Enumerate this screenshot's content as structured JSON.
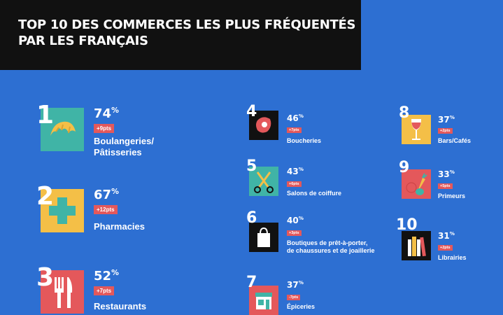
{
  "header": {
    "title_line1": "TOP 10 DES COMMERCES LES PLUS FRÉQUENTÉS",
    "title_line2": "PAR LES FRANÇAIS"
  },
  "colors": {
    "background": "#2d6fd2",
    "header_bg": "#111111",
    "badge": "#e4585b",
    "icon_teal": "#40b4a6",
    "icon_yellow": "#f4bf47",
    "icon_red": "#e4585b",
    "icon_black": "#111111"
  },
  "items": [
    {
      "rank": "1",
      "percent": "74",
      "percent_sign": "%",
      "change": "+9pts",
      "label_line1": "Boulangeries/",
      "label_line2": "Pâtisseries",
      "icon": "croissant-icon"
    },
    {
      "rank": "2",
      "percent": "67",
      "percent_sign": "%",
      "change": "+12pts",
      "label_line1": "Pharmacies",
      "icon": "pharmacy-cross-icon"
    },
    {
      "rank": "3",
      "percent": "52",
      "percent_sign": "%",
      "change": "+7pts",
      "label_line1": "Restaurants",
      "icon": "fork-knife-icon"
    },
    {
      "rank": "4",
      "percent": "46",
      "percent_sign": "%",
      "change": "+7pts",
      "label_line1": "Boucheries",
      "icon": "steak-icon"
    },
    {
      "rank": "5",
      "percent": "43",
      "percent_sign": "%",
      "change": "+6pts",
      "label_line1": "Salons de coiffure",
      "icon": "scissors-icon"
    },
    {
      "rank": "6",
      "percent": "40",
      "percent_sign": "%",
      "change": "+3pts",
      "label_line1": "Boutiques de prêt-à-porter,",
      "label_line2": "de chaussures et de joaillerie",
      "icon": "shopping-bag-icon"
    },
    {
      "rank": "7",
      "percent": "37",
      "percent_sign": "%",
      "change": "-7pts",
      "label_line1": "Épiceries",
      "icon": "grocery-store-icon"
    },
    {
      "rank": "8",
      "percent": "37",
      "percent_sign": "%",
      "change": "+2pts",
      "label_line1": "Bars/Cafés",
      "icon": "wine-glass-icon"
    },
    {
      "rank": "9",
      "percent": "33",
      "percent_sign": "%",
      "change": "+5pts",
      "label_line1": "Primeurs",
      "icon": "vegetables-icon"
    },
    {
      "rank": "10",
      "percent": "31",
      "percent_sign": "%",
      "change": "+2pts",
      "label_line1": "Librairies",
      "icon": "books-icon"
    }
  ]
}
